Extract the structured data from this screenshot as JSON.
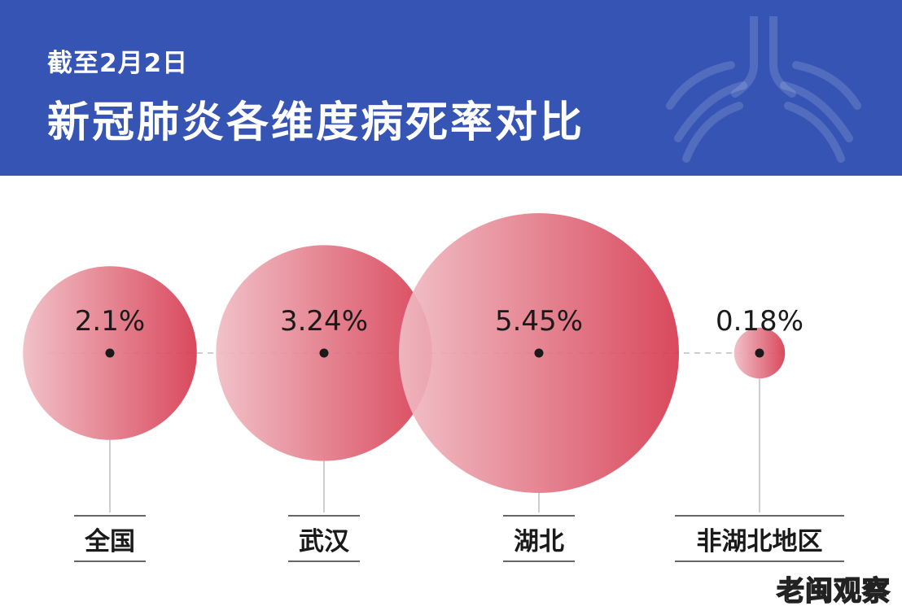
{
  "header": {
    "subtitle": "截至2月2日",
    "title": "新冠肺炎各维度病死率对比"
  },
  "chart_data": {
    "type": "bubble",
    "categories": [
      "全国",
      "武汉",
      "湖北",
      "非湖北地区"
    ],
    "value_labels": [
      "2.1%",
      "3.24%",
      "5.45%",
      "0.18%"
    ],
    "values": [
      2.1,
      3.24,
      5.45,
      0.18
    ],
    "unit": "%"
  },
  "watermark": "老闽观察",
  "colors": {
    "header_bg": "#3654b4",
    "bubble_light": "#f0bcc4",
    "bubble_dark": "#d63a4f",
    "line": "#bdbdbd"
  }
}
